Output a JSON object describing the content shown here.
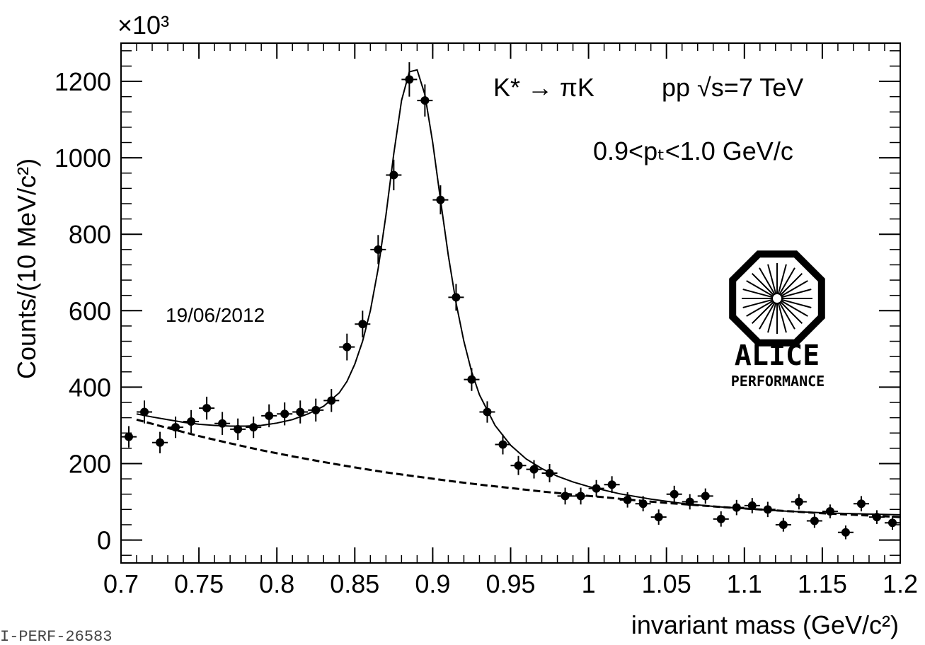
{
  "chart_data": {
    "type": "scatter",
    "title": "",
    "xlabel": "invariant mass (GeV/c²)",
    "ylabel": "Counts/(10 MeV/c²)",
    "y_multiplier": "×10³",
    "xlim": [
      0.7,
      1.2
    ],
    "ylim": [
      -60,
      1300
    ],
    "x_ticks": [
      0.7,
      0.75,
      0.8,
      0.85,
      0.9,
      0.95,
      1.0,
      1.05,
      1.1,
      1.15,
      1.2
    ],
    "x_tick_labels": [
      "0.7",
      "0.75",
      "0.8",
      "0.85",
      "0.9",
      "0.95",
      "1",
      "1.05",
      "1.1",
      "1.15",
      "1.2"
    ],
    "y_ticks": [
      0,
      200,
      400,
      600,
      800,
      1000,
      1200
    ],
    "y_tick_labels": [
      "0",
      "200",
      "400",
      "600",
      "800",
      "1000",
      "1200"
    ],
    "grid": false,
    "legend": "none",
    "annotations": {
      "reaction": "K* → πK",
      "system": "pp √s=7 TeV",
      "pt_range": "0.9<pₜ<1.0 GeV/c",
      "date": "19/06/2012",
      "logo_text": "ALICE",
      "logo_subtext": "PERFORMANCE",
      "figure_id": "I-PERF-26583"
    },
    "series": [
      {
        "style": "markers",
        "x": [
          0.705,
          0.715,
          0.725,
          0.735,
          0.745,
          0.755,
          0.765,
          0.775,
          0.785,
          0.795,
          0.805,
          0.815,
          0.825,
          0.835,
          0.845,
          0.855,
          0.865,
          0.875,
          0.885,
          0.895,
          0.905,
          0.915,
          0.925,
          0.935,
          0.945,
          0.955,
          0.965,
          0.975,
          0.985,
          0.995,
          1.005,
          1.015,
          1.025,
          1.035,
          1.045,
          1.055,
          1.065,
          1.075,
          1.085,
          1.095,
          1.105,
          1.115,
          1.125,
          1.135,
          1.145,
          1.155,
          1.165,
          1.175,
          1.185,
          1.195
        ],
        "y": [
          270,
          335,
          255,
          295,
          310,
          345,
          305,
          290,
          295,
          325,
          330,
          335,
          340,
          365,
          505,
          565,
          760,
          955,
          1205,
          1150,
          890,
          635,
          420,
          335,
          250,
          195,
          185,
          175,
          115,
          115,
          135,
          145,
          105,
          95,
          60,
          120,
          100,
          115,
          55,
          85,
          90,
          80,
          40,
          100,
          50,
          75,
          20,
          95,
          60,
          45
        ],
        "yerr": [
          28,
          30,
          28,
          28,
          30,
          30,
          30,
          28,
          28,
          30,
          30,
          30,
          30,
          30,
          35,
          35,
          38,
          40,
          45,
          42,
          38,
          35,
          30,
          28,
          26,
          25,
          24,
          24,
          22,
          22,
          22,
          22,
          20,
          20,
          20,
          22,
          20,
          20,
          20,
          20,
          20,
          20,
          18,
          20,
          18,
          18,
          18,
          20,
          18,
          18
        ],
        "xerr": 0.005
      },
      {
        "style": "solid line",
        "x": [
          0.71,
          0.72,
          0.73,
          0.74,
          0.75,
          0.76,
          0.77,
          0.78,
          0.79,
          0.8,
          0.81,
          0.82,
          0.83,
          0.84,
          0.845,
          0.85,
          0.855,
          0.86,
          0.865,
          0.87,
          0.875,
          0.88,
          0.885,
          0.89,
          0.895,
          0.9,
          0.905,
          0.91,
          0.915,
          0.92,
          0.925,
          0.93,
          0.94,
          0.95,
          0.96,
          0.97,
          0.98,
          0.99,
          1.0,
          1.02,
          1.04,
          1.06,
          1.08,
          1.1,
          1.12,
          1.14,
          1.16,
          1.18,
          1.2
        ],
        "y": [
          330,
          322,
          315,
          308,
          303,
          300,
          298,
          298,
          300,
          306,
          315,
          330,
          350,
          385,
          415,
          460,
          520,
          600,
          710,
          850,
          1010,
          1150,
          1225,
          1230,
          1165,
          1040,
          890,
          745,
          620,
          520,
          440,
          380,
          300,
          248,
          212,
          187,
          167,
          152,
          140,
          121,
          107,
          96,
          88,
          82,
          77,
          73,
          70,
          68,
          66
        ]
      },
      {
        "style": "dashed line",
        "x": [
          0.71,
          0.73,
          0.75,
          0.77,
          0.79,
          0.81,
          0.83,
          0.85,
          0.87,
          0.89,
          0.91,
          0.93,
          0.95,
          0.97,
          0.99,
          1.01,
          1.03,
          1.05,
          1.07,
          1.09,
          1.11,
          1.13,
          1.15,
          1.17,
          1.2
        ],
        "y": [
          315,
          293,
          272,
          253,
          235,
          219,
          204,
          190,
          177,
          166,
          155,
          145,
          136,
          127,
          119,
          112,
          104,
          97,
          91,
          85,
          80,
          75,
          70,
          66,
          60
        ]
      }
    ]
  }
}
